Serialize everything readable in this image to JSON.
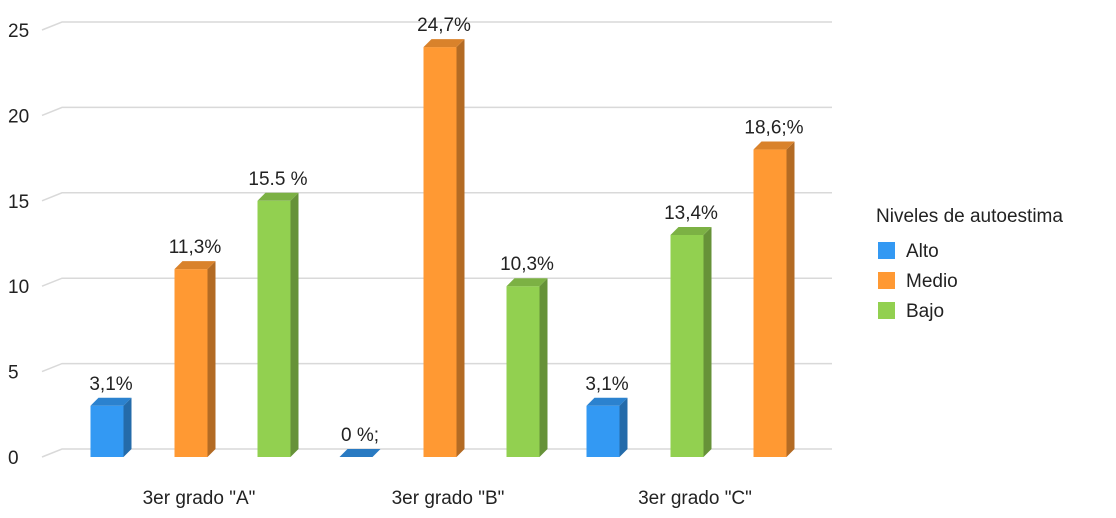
{
  "chart_data": {
    "type": "bar",
    "title": "",
    "xlabel": "",
    "ylabel": "",
    "ylim": [
      0,
      25
    ],
    "yticks": [
      0,
      5,
      10,
      15,
      20,
      25
    ],
    "grid": true,
    "legend": {
      "title": "Niveles de autoestima",
      "position": "right"
    },
    "groups": [
      {
        "label": "3er grado \"A\"",
        "bars": [
          {
            "series": "Alto",
            "value": 3,
            "label": "3,1%"
          },
          {
            "series": "Medio",
            "value": 11,
            "label": "11,3%"
          },
          {
            "series": "Bajo",
            "value": 15,
            "label": "15.5 %"
          }
        ]
      },
      {
        "label": "3er grado \"B\"",
        "bars": [
          {
            "series": "Alto",
            "value": 0,
            "label": "0 %;"
          },
          {
            "series": "Medio",
            "value": 24,
            "label": "24,7%"
          },
          {
            "series": "Bajo",
            "value": 10,
            "label": "10,3%"
          }
        ]
      },
      {
        "label": "3er grado \"C\"",
        "bars": [
          {
            "series": "Alto",
            "value": 3,
            "label": "3,1%"
          },
          {
            "series": "Bajo",
            "value": 13,
            "label": "13,4%"
          },
          {
            "series": "Medio",
            "value": 18,
            "label": "18,6;%"
          }
        ]
      }
    ],
    "series": [
      {
        "name": "Alto",
        "color": "#3399f3"
      },
      {
        "name": "Medio",
        "color": "#ff9933"
      },
      {
        "name": "Bajo",
        "color": "#92d050"
      }
    ]
  }
}
